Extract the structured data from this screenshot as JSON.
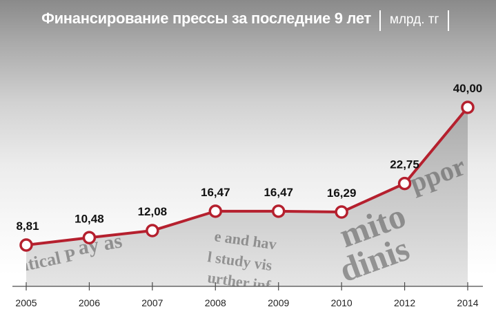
{
  "chart_data": {
    "type": "line",
    "title": "Финансирование прессы за последние 9 лет",
    "unit": "млрд. тг",
    "categories": [
      "2005",
      "2006",
      "2007",
      "2008",
      "2009",
      "2010",
      "2012",
      "2014"
    ],
    "values": [
      8.81,
      10.48,
      12.08,
      16.47,
      16.47,
      16.29,
      22.75,
      40.0
    ],
    "data_labels": [
      "8,81",
      "10,48",
      "12,08",
      "16,47",
      "16,47",
      "16,29",
      "22,75",
      "40,00"
    ],
    "ylim": [
      0,
      45
    ],
    "line_color": "#b5202e",
    "marker_fill": "#ffffff",
    "grid": false,
    "legend": false
  }
}
